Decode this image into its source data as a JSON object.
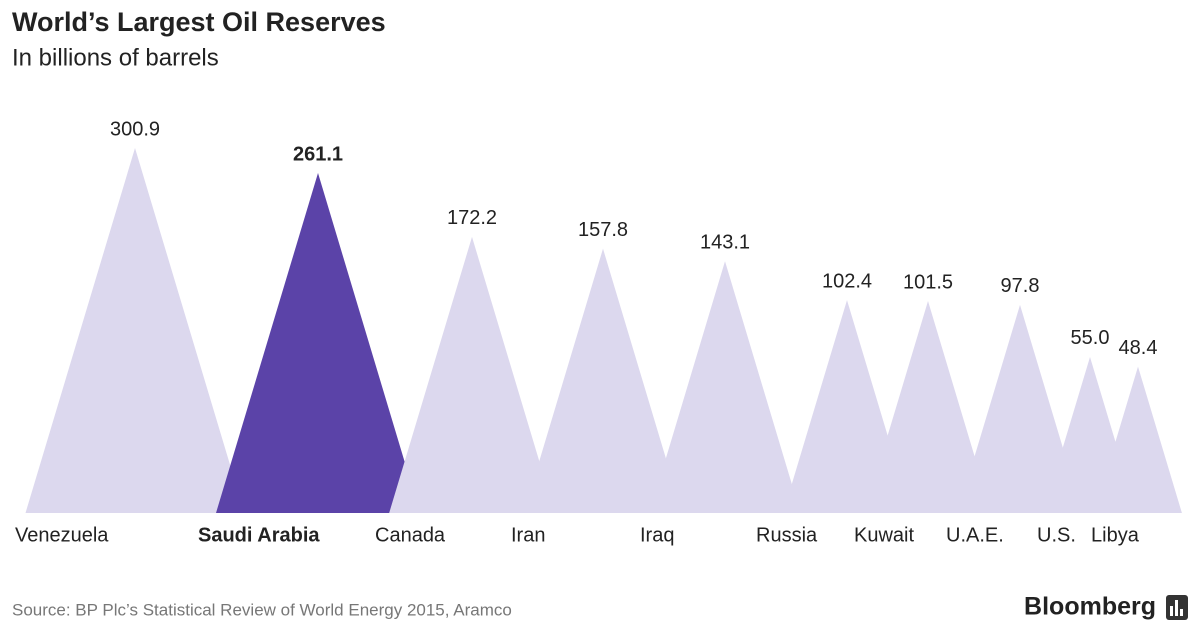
{
  "chart_data": {
    "type": "triangle",
    "title": "World’s Largest Oil Reserves",
    "subtitle": "In billions of barrels",
    "categories": [
      "Venezuela",
      "Saudi Arabia",
      "Canada",
      "Iran",
      "Iraq",
      "Russia",
      "Kuwait",
      "U.A.E.",
      "U.S.",
      "Libya"
    ],
    "values": [
      300.9,
      261.1,
      172.2,
      157.8,
      143.1,
      102.4,
      101.5,
      97.8,
      55.0,
      48.4
    ],
    "value_labels": [
      "300.9",
      "261.1",
      "172.2",
      "157.8",
      "143.1",
      "102.4",
      "101.5",
      "97.8",
      "55.0",
      "48.4"
    ],
    "colors": [
      "#dcd8ee",
      "#5b43a8",
      "#dcd8ee",
      "#dcd8ee",
      "#dcd8ee",
      "#dcd8ee",
      "#dcd8ee",
      "#dcd8ee",
      "#dcd8ee",
      "#dcd8ee"
    ],
    "emphasis": [
      false,
      true,
      false,
      false,
      false,
      false,
      false,
      false,
      false,
      false
    ],
    "scale": "area",
    "source": "Source: BP Plc’s Statistical Review of World Energy 2015, Aramco",
    "brand": "Bloomberg"
  }
}
